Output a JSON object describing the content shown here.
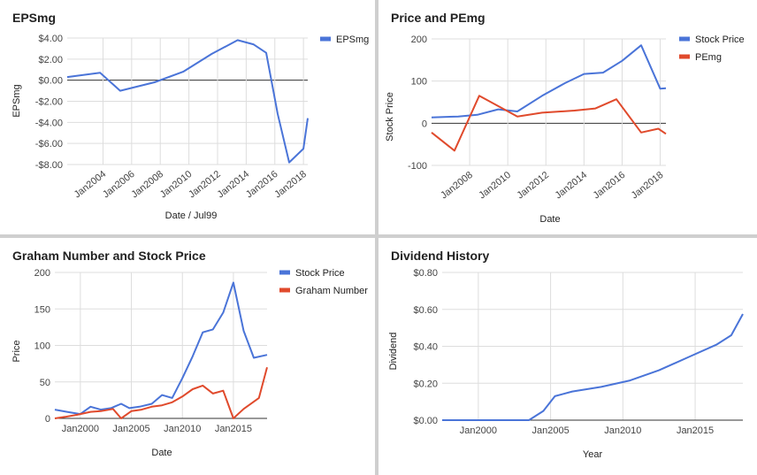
{
  "colors": {
    "blue": "#4a74d8",
    "red": "#e04a2c",
    "grid": "#dddddd",
    "zero": "#333333"
  },
  "chart_data": [
    {
      "type": "line",
      "title": "EPSmg",
      "xlabel": "Date / Jul99",
      "ylabel": "EPSmg",
      "xlim": [
        2001.5,
        2018.3
      ],
      "ylim": [
        -8,
        4
      ],
      "y_ticks": [
        4,
        2,
        0,
        -2,
        -4,
        -6,
        -8
      ],
      "y_tick_labels": [
        "$4.00",
        "$2.00",
        "$0.00",
        "-$2.00",
        "-$4.00",
        "-$6.00",
        "-$8.00"
      ],
      "x_ticks": [
        2004,
        2006,
        2008,
        2010,
        2012,
        2014,
        2016,
        2018
      ],
      "x_tick_labels": [
        "Jan2004",
        "Jan2006",
        "Jan2008",
        "Jan2010",
        "Jan2012",
        "Jan2014",
        "Jan2016",
        "Jan2018"
      ],
      "x_tick_rotate": true,
      "legend_position": "top-right",
      "series": [
        {
          "name": "EPSmg",
          "color": "#4a74d8",
          "x": [
            2001.5,
            2003.8,
            2005.2,
            2007.6,
            2009.6,
            2011.6,
            2013.4,
            2014.5,
            2015.4,
            2016.2,
            2017.0,
            2018.0,
            2018.3
          ],
          "y": [
            0.3,
            0.7,
            -1.0,
            -0.2,
            0.8,
            2.5,
            3.8,
            3.4,
            2.6,
            -3.2,
            -7.8,
            -6.5,
            -3.6
          ]
        }
      ]
    },
    {
      "type": "line",
      "title": "Price and PEmg",
      "xlabel": "Date",
      "ylabel": "Stock Price",
      "xlim": [
        2006.0,
        2018.3
      ],
      "ylim": [
        -100,
        200
      ],
      "y_ticks": [
        200,
        100,
        0,
        -100
      ],
      "y_tick_labels": [
        "200",
        "100",
        "0",
        "-100"
      ],
      "x_ticks": [
        2008,
        2010,
        2012,
        2014,
        2016,
        2018
      ],
      "x_tick_labels": [
        "Jan2008",
        "Jan2010",
        "Jan2012",
        "Jan2014",
        "Jan2016",
        "Jan2018"
      ],
      "x_tick_rotate": true,
      "legend_position": "top-right",
      "series": [
        {
          "name": "Stock Price",
          "color": "#4a74d8",
          "x": [
            2006.0,
            2007.4,
            2008.4,
            2009.5,
            2010.5,
            2011.8,
            2013.0,
            2014.0,
            2015.0,
            2016.0,
            2017.0,
            2018.0,
            2018.3
          ],
          "y": [
            14,
            16,
            20,
            33,
            28,
            65,
            95,
            117,
            120,
            148,
            185,
            82,
            83
          ]
        },
        {
          "name": "PEmg",
          "color": "#e04a2c",
          "x": [
            2006.0,
            2007.2,
            2008.5,
            2010.5,
            2011.8,
            2013.5,
            2014.6,
            2015.7,
            2017.0,
            2017.9,
            2018.3
          ],
          "y": [
            -22,
            -65,
            65,
            16,
            25,
            30,
            35,
            57,
            -22,
            -13,
            -25
          ]
        }
      ]
    },
    {
      "type": "line",
      "title": "Graham Number and Stock Price",
      "xlabel": "Date",
      "ylabel": "Price",
      "xlim": [
        1997.5,
        2018.3
      ],
      "ylim": [
        0,
        200
      ],
      "y_ticks": [
        200,
        150,
        100,
        50,
        0
      ],
      "y_tick_labels": [
        "200",
        "150",
        "100",
        "50",
        "0"
      ],
      "x_ticks": [
        2000,
        2005,
        2010,
        2015
      ],
      "x_tick_labels": [
        "Jan2000",
        "Jan2005",
        "Jan2010",
        "Jan2015"
      ],
      "x_tick_rotate": false,
      "legend_position": "top-right",
      "series": [
        {
          "name": "Stock Price",
          "color": "#4a74d8",
          "x": [
            1997.5,
            1998.7,
            2000.0,
            2001.0,
            2002.0,
            2003.0,
            2004.0,
            2004.8,
            2005.8,
            2007.0,
            2008.0,
            2009.0,
            2010.0,
            2011.0,
            2012.0,
            2013.0,
            2014.0,
            2015.0,
            2016.0,
            2017.0,
            2018.3
          ],
          "y": [
            12,
            9,
            6,
            16,
            12,
            14,
            20,
            14,
            16,
            20,
            32,
            28,
            55,
            85,
            118,
            122,
            145,
            186,
            120,
            83,
            87
          ]
        },
        {
          "name": "Graham Number",
          "color": "#e04a2c",
          "x": [
            1997.5,
            1998.5,
            1999.7,
            2001.0,
            2002.0,
            2003.2,
            2004.0,
            2005.0,
            2006.0,
            2007.0,
            2008.0,
            2009.0,
            2010.0,
            2011.0,
            2012.0,
            2013.0,
            2014.0,
            2015.0,
            2016.0,
            2017.5,
            2018.3
          ],
          "y": [
            0,
            2,
            5,
            9,
            10,
            13,
            0,
            10,
            12,
            16,
            18,
            22,
            30,
            40,
            45,
            34,
            38,
            0,
            13,
            28,
            70
          ]
        }
      ]
    },
    {
      "type": "line",
      "title": "Dividend History",
      "xlabel": "Year",
      "ylabel": "Dividend",
      "xlim": [
        1997.5,
        2018.3
      ],
      "ylim": [
        0,
        0.8
      ],
      "y_ticks": [
        0.8,
        0.6,
        0.4,
        0.2,
        0
      ],
      "y_tick_labels": [
        "$0.80",
        "$0.60",
        "$0.40",
        "$0.20",
        "$0.00"
      ],
      "x_ticks": [
        2000,
        2005,
        2010,
        2015
      ],
      "x_tick_labels": [
        "Jan2000",
        "Jan2005",
        "Jan2010",
        "Jan2015"
      ],
      "x_tick_rotate": false,
      "legend_position": "none",
      "series": [
        {
          "color": "#4a74d8",
          "x": [
            1997.5,
            2000.0,
            2003.5,
            2004.5,
            2005.3,
            2006.5,
            2008.5,
            2010.5,
            2012.5,
            2014.5,
            2016.5,
            2017.5,
            2018.3
          ],
          "y": [
            0,
            0,
            0,
            0.05,
            0.13,
            0.155,
            0.18,
            0.215,
            0.27,
            0.34,
            0.41,
            0.46,
            0.575
          ]
        }
      ]
    }
  ]
}
